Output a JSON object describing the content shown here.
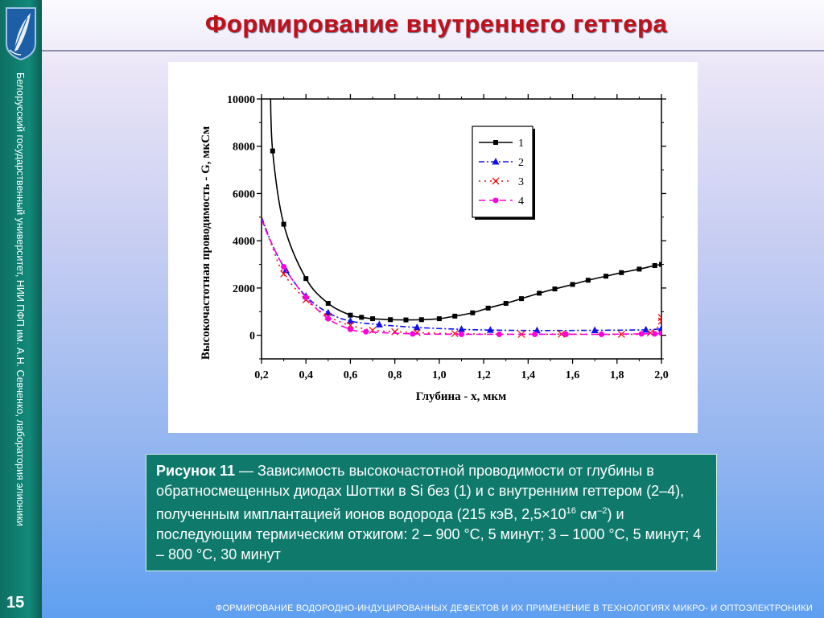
{
  "slide": {
    "title": "Формирование внутреннего геттера",
    "sidebar_text": "Белорусский государственный университет, НИИ ПФП им. А.Н. Севченко, лаборатория элионики",
    "page_number": "15",
    "footer": "Формирование водородно-индуцированных дефектов и их применение в технологиях микро- и оптоэлектроники",
    "logo_icon": "feather-crest-icon",
    "colors": {
      "title": "#c2101a",
      "sidebar": "#128a7a",
      "caption_bg": "#0f7a6c"
    }
  },
  "caption": {
    "label": "Рисунок 11",
    "text_1": " — Зависимость высокочастотной проводимости от глубины в обратносмещенных диодах Шоттки в Si без (1) и с внутренним геттером (2–4), полученным имплантацией ионов водорода (215 кэВ, 2,5",
    "times": "×",
    "base": "10",
    "exp1": "16",
    "unit": " см",
    "exp2": "–2",
    "text_2": ") и последующим термическим отжигом: 2 – 900 °С, 5 минут; 3 – 1000 °С, 5 минут; 4 – 800 °С, 30 минут"
  },
  "chart_data": {
    "type": "line",
    "xlabel": "Глубина - х, мкм",
    "ylabel": "Высокочастотная проводимость - G, мкСм",
    "xlim": [
      0.2,
      2.0
    ],
    "ylim": [
      -1000,
      10000
    ],
    "x_ticks": [
      0.2,
      0.4,
      0.6,
      0.8,
      1.0,
      1.2,
      1.4,
      1.6,
      1.8,
      2.0
    ],
    "x_tick_labels": [
      "0,2",
      "0,4",
      "0,6",
      "0,8",
      "1,0",
      "1,2",
      "1,4",
      "1,6",
      "1,8",
      "2,0"
    ],
    "y_ticks": [
      0,
      2000,
      4000,
      6000,
      8000,
      10000
    ],
    "y_tick_labels": [
      "0",
      "2000",
      "4000",
      "6000",
      "8000",
      "10000"
    ],
    "legend_position": "top-right",
    "grid": false,
    "series": [
      {
        "name": "1",
        "color": "#000000",
        "dash": "",
        "marker": "square",
        "x": [
          0.25,
          0.3,
          0.4,
          0.5,
          0.6,
          0.65,
          0.7,
          0.78,
          0.85,
          0.92,
          1.0,
          1.07,
          1.15,
          1.22,
          1.3,
          1.37,
          1.45,
          1.52,
          1.6,
          1.67,
          1.75,
          1.82,
          1.9,
          1.97,
          2.0
        ],
        "y": [
          7800,
          4700,
          2400,
          1350,
          850,
          760,
          700,
          660,
          650,
          660,
          700,
          810,
          950,
          1150,
          1350,
          1550,
          1780,
          1960,
          2150,
          2330,
          2500,
          2650,
          2800,
          2950,
          3000
        ]
      },
      {
        "name": "2",
        "color": "#1010ee",
        "dash": "7,3,2,3",
        "marker": "triangle",
        "x": [
          0.2,
          0.25,
          0.31,
          0.4,
          0.5,
          0.6,
          0.73,
          0.9,
          1.1,
          1.23,
          1.44,
          1.7,
          1.93,
          2.0
        ],
        "y": [
          5000,
          3800,
          2750,
          1650,
          950,
          600,
          450,
          330,
          250,
          220,
          200,
          210,
          230,
          280
        ]
      },
      {
        "name": "3",
        "color": "#ee1010",
        "dash": "2,5",
        "marker": "x",
        "x": [
          0.2,
          0.25,
          0.3,
          0.4,
          0.5,
          0.6,
          0.7,
          0.8,
          0.9,
          1.07,
          1.37,
          1.55,
          1.82,
          1.95,
          2.0,
          2.0
        ],
        "y": [
          5000,
          3700,
          2600,
          1500,
          800,
          420,
          210,
          150,
          110,
          70,
          40,
          50,
          40,
          100,
          600,
          750
        ]
      },
      {
        "name": "4",
        "color": "#ff00dd",
        "dash": "8,5",
        "marker": "circle",
        "x": [
          0.2,
          0.24,
          0.3,
          0.4,
          0.5,
          0.6,
          0.67,
          0.88,
          1.1,
          1.27,
          1.43,
          1.57,
          1.73,
          1.91,
          1.97,
          2.0
        ],
        "y": [
          4900,
          4000,
          2900,
          1600,
          700,
          250,
          150,
          60,
          40,
          40,
          40,
          40,
          40,
          60,
          60,
          80
        ]
      }
    ]
  }
}
